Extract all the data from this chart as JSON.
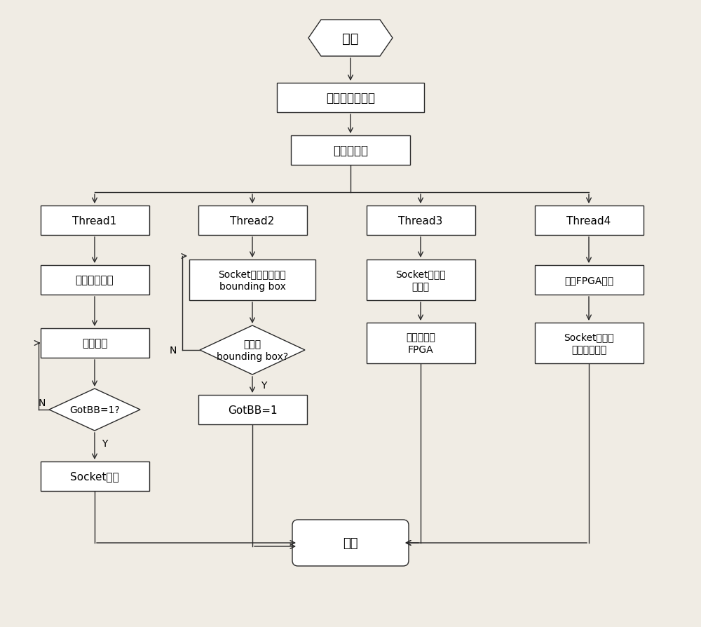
{
  "bg_color": "#f0ece4",
  "line_color": "#2a2a2a",
  "box_fill": "#ffffff",
  "font_size_main": 12,
  "font_size_small": 10,
  "nodes": {
    "start": {
      "label": "开始"
    },
    "init": {
      "label": "通信模块初始化"
    },
    "create": {
      "label": "创建子线程"
    },
    "t1": {
      "label": "Thread1"
    },
    "t2": {
      "label": "Thread2"
    },
    "t3": {
      "label": "Thread3"
    },
    "t4": {
      "label": "Thread4"
    },
    "open_video": {
      "label": "打开视频采集"
    },
    "socket_wait": {
      "label": "Socket阻塞等待接收\nbounding box"
    },
    "socket_recv": {
      "label": "Socket接收控\n制指令"
    },
    "read_fpga": {
      "label": "读取FPGA数据"
    },
    "capture": {
      "label": "抓取一帧"
    },
    "recv_bb_q": {
      "label": "接收到\nbounding box?"
    },
    "img_fpga": {
      "label": "图像发送给\nFPGA"
    },
    "sock_send2": {
      "label": "Socket发送给\n地面控制平台"
    },
    "gotbb_q": {
      "label": "GotBB=1?"
    },
    "gotbb1": {
      "label": "GotBB=1"
    },
    "socket_send": {
      "label": "Socket发送"
    },
    "end": {
      "label": "结束"
    }
  }
}
